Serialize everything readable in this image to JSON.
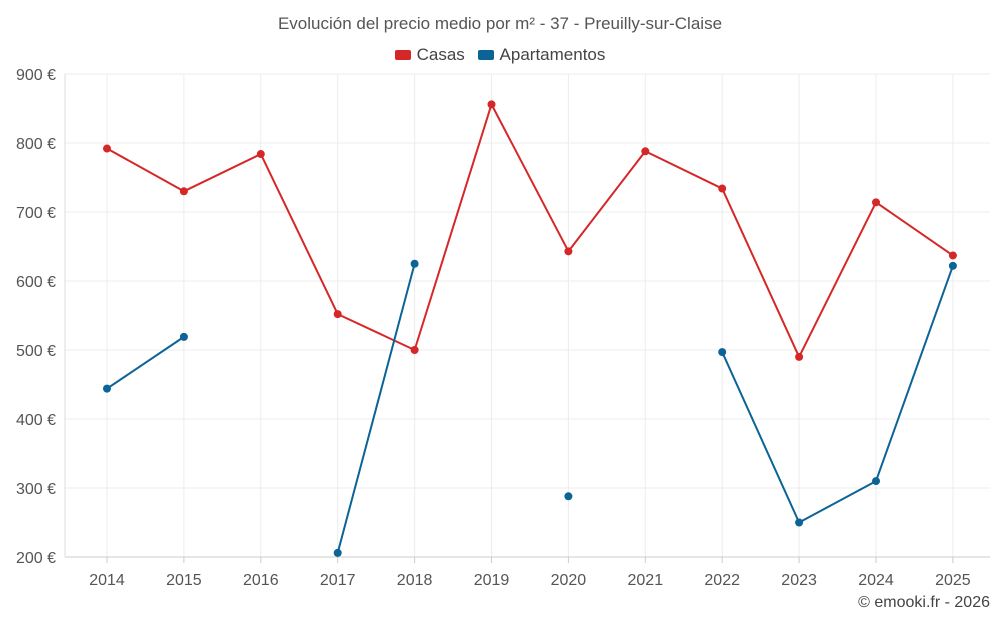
{
  "chart_data": {
    "type": "line",
    "title": "Evolución del precio medio por m² - 37 - Preuilly-sur-Claise",
    "x": [
      "2014",
      "2015",
      "2016",
      "2017",
      "2018",
      "2019",
      "2020",
      "2021",
      "2022",
      "2023",
      "2024",
      "2025"
    ],
    "ylim": [
      200,
      900
    ],
    "yticks": [
      200,
      300,
      400,
      500,
      600,
      700,
      800,
      900
    ],
    "ytick_labels": [
      "200 €",
      "300 €",
      "400 €",
      "500 €",
      "600 €",
      "700 €",
      "800 €",
      "900 €"
    ],
    "grid": true,
    "legend_position": "top-center",
    "series": [
      {
        "name": "Casas",
        "color": "#d62728",
        "values": [
          792,
          730,
          784,
          552,
          500,
          856,
          643,
          788,
          734,
          490,
          714,
          637
        ]
      },
      {
        "name": "Apartamentos",
        "color": "#0b6396",
        "values": [
          444,
          519,
          null,
          206,
          625,
          null,
          288,
          null,
          497,
          250,
          310,
          622
        ]
      }
    ]
  },
  "credit": "© emooki.fr - 2026"
}
